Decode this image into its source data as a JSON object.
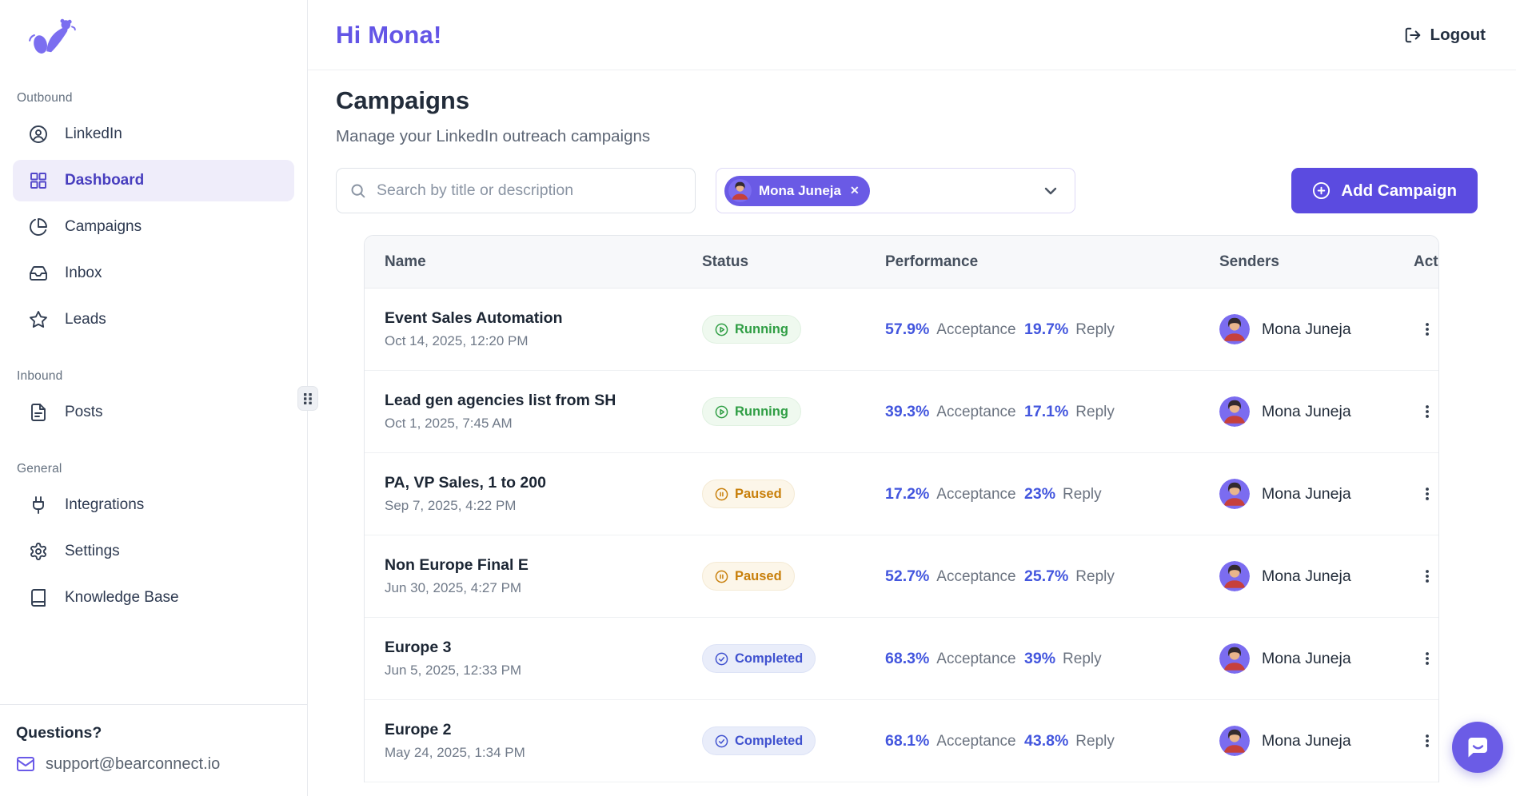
{
  "colors": {
    "accent": "#5b4be0",
    "accent_heading": "#6355e6",
    "chip_bg": "#6a5ae5",
    "status_running": "#2f9e44",
    "status_paused": "#c87f0a",
    "status_completed": "#3f51cf",
    "performance_value": "#4356de"
  },
  "header": {
    "greeting": "Hi Mona!",
    "logout_label": "Logout",
    "logout_icon": "logout-icon"
  },
  "page": {
    "title": "Campaigns",
    "subtitle": "Manage your LinkedIn outreach campaigns"
  },
  "toolbar": {
    "search_placeholder": "Search by title or description",
    "search_value": "",
    "search_icon": "search-icon",
    "sender_filter": {
      "selected": "Mona Juneja",
      "remove_icon": "close-icon",
      "chevron_icon": "chevron-down-icon"
    },
    "add_campaign_label": "Add Campaign",
    "add_campaign_icon": "plus-circle-icon"
  },
  "sidebar": {
    "logo_icon": "bear-logo-icon",
    "sections": [
      {
        "label": "Outbound",
        "items": [
          {
            "id": "linkedin",
            "label": "LinkedIn",
            "icon": "user-circle-icon",
            "active": false
          },
          {
            "id": "dashboard",
            "label": "Dashboard",
            "icon": "grid-icon",
            "active": true
          },
          {
            "id": "campaigns",
            "label": "Campaigns",
            "icon": "pie-chart-icon",
            "active": false
          },
          {
            "id": "inbox",
            "label": "Inbox",
            "icon": "inbox-icon",
            "active": false
          },
          {
            "id": "leads",
            "label": "Leads",
            "icon": "star-icon",
            "active": false
          }
        ]
      },
      {
        "label": "Inbound",
        "items": [
          {
            "id": "posts",
            "label": "Posts",
            "icon": "file-text-icon",
            "active": false
          }
        ]
      },
      {
        "label": "General",
        "items": [
          {
            "id": "integrations",
            "label": "Integrations",
            "icon": "plug-icon",
            "active": false
          },
          {
            "id": "settings",
            "label": "Settings",
            "icon": "gear-icon",
            "active": false
          },
          {
            "id": "knowledge-base",
            "label": "Knowledge Base",
            "icon": "book-icon",
            "active": false
          }
        ]
      }
    ],
    "footer": {
      "question_label": "Questions?",
      "support_email": "support@bearconnect.io",
      "mail_icon": "mail-icon"
    }
  },
  "table": {
    "columns": [
      "Name",
      "Status",
      "Performance",
      "Senders",
      "Actions"
    ],
    "performance_labels": {
      "acceptance": "Acceptance",
      "reply": "Reply"
    },
    "rows": [
      {
        "name": "Event Sales Automation",
        "date": "Oct 14, 2025, 12:20 PM",
        "status": "Running",
        "status_type": "running",
        "acceptance": "57.9%",
        "reply": "19.7%",
        "sender": "Mona Juneja"
      },
      {
        "name": "Lead gen agencies list from SH",
        "date": "Oct 1, 2025, 7:45 AM",
        "status": "Running",
        "status_type": "running",
        "acceptance": "39.3%",
        "reply": "17.1%",
        "sender": "Mona Juneja"
      },
      {
        "name": "PA, VP Sales, 1 to 200",
        "date": "Sep 7, 2025, 4:22 PM",
        "status": "Paused",
        "status_type": "paused",
        "acceptance": "17.2%",
        "reply": "23%",
        "sender": "Mona Juneja"
      },
      {
        "name": "Non Europe Final E",
        "date": "Jun 30, 2025, 4:27 PM",
        "status": "Paused",
        "status_type": "paused",
        "acceptance": "52.7%",
        "reply": "25.7%",
        "sender": "Mona Juneja"
      },
      {
        "name": "Europe 3",
        "date": "Jun 5, 2025, 12:33 PM",
        "status": "Completed",
        "status_type": "completed",
        "acceptance": "68.3%",
        "reply": "39%",
        "sender": "Mona Juneja"
      },
      {
        "name": "Europe 2",
        "date": "May 24, 2025, 1:34 PM",
        "status": "Completed",
        "status_type": "completed",
        "acceptance": "68.1%",
        "reply": "43.8%",
        "sender": "Mona Juneja"
      }
    ]
  },
  "chat_widget": {
    "icon": "chat-bubble-icon"
  }
}
